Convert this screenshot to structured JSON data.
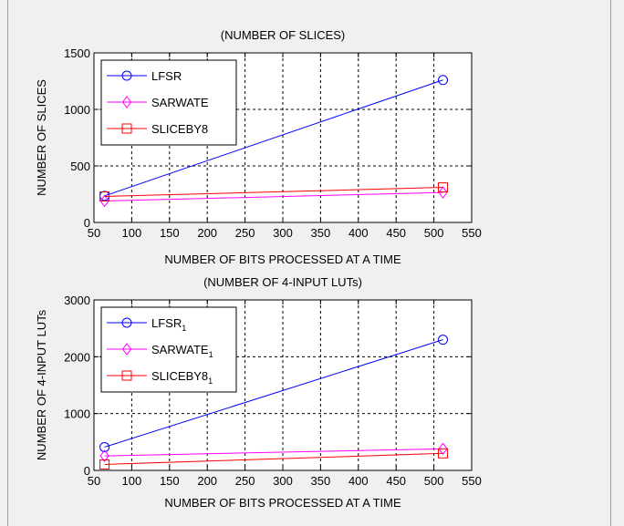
{
  "chart_data": [
    {
      "type": "line",
      "title": "(NUMBER OF SLICES)",
      "xlabel": "NUMBER OF BITS PROCESSED AT A TIME",
      "ylabel": "NUMBER OF SLICES",
      "xlim": [
        50,
        550
      ],
      "ylim": [
        0,
        1500
      ],
      "xticks": [
        50,
        100,
        150,
        200,
        250,
        300,
        350,
        400,
        450,
        500,
        550
      ],
      "yticks": [
        0,
        500,
        1000,
        1500
      ],
      "grid": true,
      "legend_position": "top-left",
      "series": [
        {
          "name": "LFSR",
          "sub": "",
          "color": "#0000ff",
          "marker": "circle",
          "x": [
            64,
            512
          ],
          "y": [
            235,
            1260
          ]
        },
        {
          "name": "SARWATE",
          "sub": "",
          "color": "#ff00ff",
          "marker": "diamond",
          "x": [
            64,
            512
          ],
          "y": [
            190,
            265
          ]
        },
        {
          "name": "SLICEBY8",
          "sub": "",
          "color": "#ff0000",
          "marker": "square",
          "x": [
            64,
            512
          ],
          "y": [
            230,
            310
          ]
        }
      ]
    },
    {
      "type": "line",
      "title": "(NUMBER OF 4-INPUT LUTs)",
      "xlabel": "NUMBER OF BITS PROCESSED AT A TIME",
      "ylabel": "NUMBER OF 4-INPUT LUTs",
      "xlim": [
        50,
        550
      ],
      "ylim": [
        0,
        3000
      ],
      "xticks": [
        50,
        100,
        150,
        200,
        250,
        300,
        350,
        400,
        450,
        500,
        550
      ],
      "yticks": [
        0,
        1000,
        2000,
        3000
      ],
      "grid": true,
      "legend_position": "top-left",
      "series": [
        {
          "name": "LFSR",
          "sub": "1",
          "color": "#0000ff",
          "marker": "circle",
          "x": [
            64,
            512
          ],
          "y": [
            410,
            2300
          ]
        },
        {
          "name": "SARWATE",
          "sub": "1",
          "color": "#ff00ff",
          "marker": "diamond",
          "x": [
            64,
            512
          ],
          "y": [
            255,
            380
          ]
        },
        {
          "name": "SLICEBY8",
          "sub": "1",
          "color": "#ff0000",
          "marker": "square",
          "x": [
            64,
            512
          ],
          "y": [
            105,
            300
          ]
        }
      ]
    }
  ]
}
